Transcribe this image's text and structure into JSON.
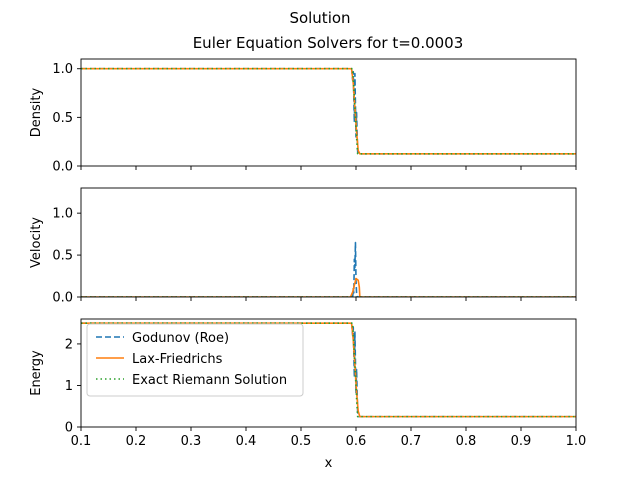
{
  "suptitle": "Solution",
  "chart_data": [
    {
      "type": "line",
      "title": "Euler Equation Solvers for t=0.0003",
      "ylabel": "Density",
      "xlabel": "",
      "xlim": [
        0.1,
        1.0
      ],
      "ylim": [
        0.0,
        1.1
      ],
      "yticks": [
        "0.0",
        "0.5",
        "1.0"
      ],
      "xticks": [
        "0.1",
        "0.2",
        "0.3",
        "0.4",
        "0.5",
        "0.6",
        "0.7",
        "0.8",
        "0.9",
        "1.0"
      ],
      "show_xticklabels": false,
      "series": [
        {
          "name": "Godunov (Roe)",
          "color": "#1f77b4",
          "style": "dashed",
          "x": [
            0.1,
            0.592,
            0.594,
            0.595,
            0.597,
            0.598,
            0.6,
            0.601,
            0.603,
            0.605,
            1.0
          ],
          "y": [
            1.0,
            1.0,
            0.88,
            0.97,
            0.45,
            0.95,
            0.3,
            0.55,
            0.15,
            0.125,
            0.125
          ]
        },
        {
          "name": "Lax-Friedrichs",
          "color": "#ff7f0e",
          "style": "solid",
          "x": [
            0.1,
            0.592,
            0.595,
            0.598,
            0.601,
            0.604,
            0.607,
            1.0
          ],
          "y": [
            1.0,
            1.0,
            0.85,
            0.6,
            0.35,
            0.16,
            0.125,
            0.125
          ]
        },
        {
          "name": "Exact Riemann Solution",
          "color": "#2ca02c",
          "style": "dotted",
          "x": [
            0.1,
            0.594,
            0.596,
            0.599,
            0.601,
            0.603,
            1.0
          ],
          "y": [
            1.0,
            1.0,
            0.8,
            0.5,
            0.3,
            0.125,
            0.125
          ]
        }
      ]
    },
    {
      "type": "line",
      "title": "",
      "ylabel": "Velocity",
      "xlabel": "",
      "xlim": [
        0.1,
        1.0
      ],
      "ylim": [
        0.0,
        1.3
      ],
      "yticks": [
        "0.0",
        "0.5",
        "1.0"
      ],
      "xticks": [
        "0.1",
        "0.2",
        "0.3",
        "0.4",
        "0.5",
        "0.6",
        "0.7",
        "0.8",
        "0.9",
        "1.0"
      ],
      "show_xticklabels": false,
      "series": [
        {
          "name": "Godunov (Roe)",
          "color": "#1f77b4",
          "style": "dashed",
          "x": [
            0.1,
            0.594,
            0.595,
            0.596,
            0.597,
            0.598,
            0.599,
            0.6,
            0.601,
            0.603,
            1.0
          ],
          "y": [
            0.0,
            0.0,
            0.1,
            0.05,
            0.45,
            0.35,
            0.65,
            0.2,
            0.05,
            0.0,
            0.0
          ]
        },
        {
          "name": "Lax-Friedrichs",
          "color": "#ff7f0e",
          "style": "solid",
          "x": [
            0.1,
            0.59,
            0.594,
            0.597,
            0.6,
            0.602,
            0.604,
            0.606,
            0.607,
            1.0
          ],
          "y": [
            0.0,
            0.0,
            0.06,
            0.14,
            0.22,
            0.21,
            0.2,
            0.12,
            0.0,
            0.0
          ]
        },
        {
          "name": "Exact Riemann Solution",
          "color": "#2ca02c",
          "style": "dotted",
          "x": [
            0.1,
            1.0
          ],
          "y": [
            0.0,
            0.0
          ]
        }
      ]
    },
    {
      "type": "line",
      "title": "",
      "ylabel": "Energy",
      "xlabel": "x",
      "xlim": [
        0.1,
        1.0
      ],
      "ylim": [
        0.0,
        2.6
      ],
      "yticks": [
        "0",
        "1",
        "2"
      ],
      "xticks": [
        "0.1",
        "0.2",
        "0.3",
        "0.4",
        "0.5",
        "0.6",
        "0.7",
        "0.8",
        "0.9",
        "1.0"
      ],
      "show_xticklabels": true,
      "legend": "upper-left",
      "series": [
        {
          "name": "Godunov (Roe)",
          "color": "#1f77b4",
          "style": "dashed",
          "x": [
            0.1,
            0.592,
            0.594,
            0.595,
            0.597,
            0.598,
            0.6,
            0.601,
            0.603,
            0.605,
            1.0
          ],
          "y": [
            2.5,
            2.5,
            2.2,
            2.4,
            1.2,
            2.3,
            0.8,
            1.4,
            0.35,
            0.25,
            0.25
          ]
        },
        {
          "name": "Lax-Friedrichs",
          "color": "#ff7f0e",
          "style": "solid",
          "x": [
            0.1,
            0.592,
            0.595,
            0.598,
            0.601,
            0.604,
            0.607,
            1.0
          ],
          "y": [
            2.5,
            2.5,
            2.1,
            1.5,
            0.85,
            0.38,
            0.25,
            0.25
          ]
        },
        {
          "name": "Exact Riemann Solution",
          "color": "#2ca02c",
          "style": "dotted",
          "x": [
            0.1,
            0.594,
            0.596,
            0.599,
            0.601,
            0.603,
            1.0
          ],
          "y": [
            2.5,
            2.5,
            2.0,
            1.25,
            0.7,
            0.25,
            0.25
          ]
        }
      ]
    }
  ]
}
